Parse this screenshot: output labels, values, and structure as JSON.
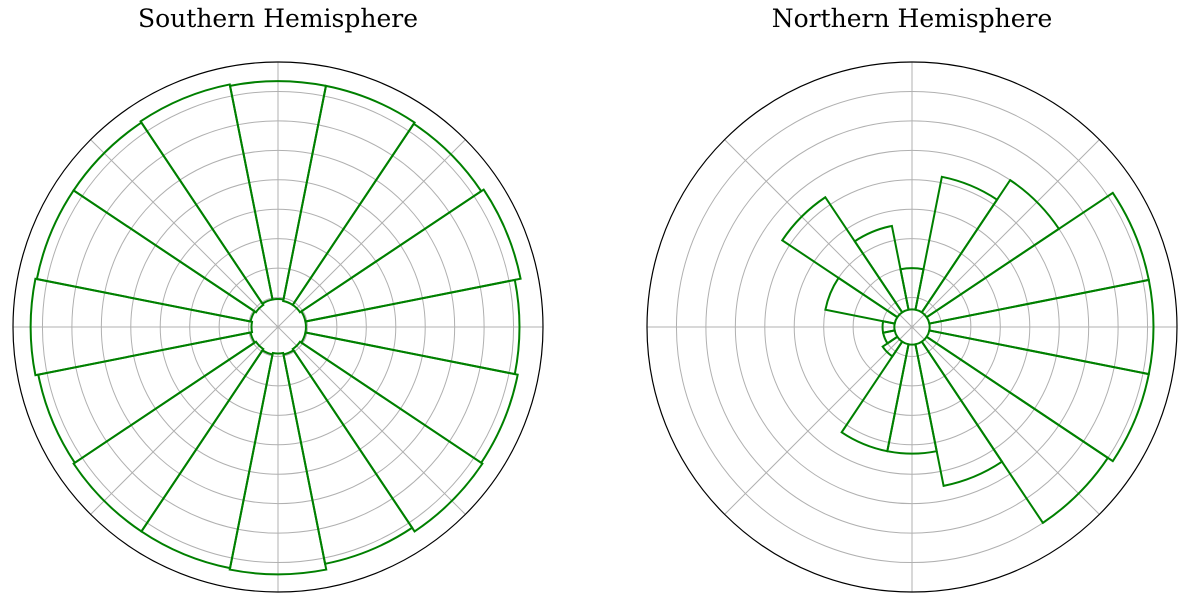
{
  "chart_data": [
    {
      "type": "polar-bar",
      "title": "Southern Hemisphere",
      "grid": true,
      "color": "#008000",
      "sectors": 16,
      "rlim": [
        0,
        9
      ],
      "rticks": [
        1,
        2,
        3,
        4,
        5,
        6,
        7,
        8
      ],
      "bars": [
        {
          "theta_deg": 0,
          "r0": 0.95,
          "r1": 8.35
        },
        {
          "theta_deg": 22.5,
          "r0": 0.9,
          "r1": 8.35
        },
        {
          "theta_deg": 45,
          "r0": 0.9,
          "r1": 8.3
        },
        {
          "theta_deg": 67.5,
          "r0": 0.95,
          "r1": 8.4
        },
        {
          "theta_deg": 90,
          "r0": 0.95,
          "r1": 8.2
        },
        {
          "theta_deg": 112.5,
          "r0": 0.95,
          "r1": 8.3
        },
        {
          "theta_deg": 135,
          "r0": 0.9,
          "r1": 8.35
        },
        {
          "theta_deg": 157.5,
          "r0": 0.95,
          "r1": 8.2
        },
        {
          "theta_deg": 180,
          "r0": 0.9,
          "r1": 8.4
        },
        {
          "theta_deg": 202.5,
          "r0": 0.95,
          "r1": 8.35
        },
        {
          "theta_deg": 225,
          "r0": 0.9,
          "r1": 8.35
        },
        {
          "theta_deg": 247.5,
          "r0": 0.95,
          "r1": 8.3
        },
        {
          "theta_deg": 270,
          "r0": 0.9,
          "r1": 8.4
        },
        {
          "theta_deg": 292.5,
          "r0": 0.95,
          "r1": 8.35
        },
        {
          "theta_deg": 315,
          "r0": 0.9,
          "r1": 8.35
        },
        {
          "theta_deg": 337.5,
          "r0": 0.95,
          "r1": 8.4
        }
      ]
    },
    {
      "type": "polar-bar",
      "title": "Northern Hemisphere",
      "grid": true,
      "color": "#008000",
      "sectors": 16,
      "rlim": [
        0,
        9
      ],
      "rticks": [
        1,
        2,
        3,
        4,
        5,
        6,
        7,
        8
      ],
      "bars": [
        {
          "theta_deg": 0,
          "r0": 0.6,
          "r1": 2.0
        },
        {
          "theta_deg": 22.5,
          "r0": 0.6,
          "r1": 5.2
        },
        {
          "theta_deg": 45,
          "r0": 0.6,
          "r1": 6.0
        },
        {
          "theta_deg": 67.5,
          "r0": 0.6,
          "r1": 8.2
        },
        {
          "theta_deg": 90,
          "r0": 0.6,
          "r1": 8.2
        },
        {
          "theta_deg": 112.5,
          "r0": 0.6,
          "r1": 8.2
        },
        {
          "theta_deg": 135,
          "r0": 0.6,
          "r1": 8.0
        },
        {
          "theta_deg": 157.5,
          "r0": 0.6,
          "r1": 5.5
        },
        {
          "theta_deg": 180,
          "r0": 0.6,
          "r1": 4.3
        },
        {
          "theta_deg": 202.5,
          "r0": 0.6,
          "r1": 4.3
        },
        {
          "theta_deg": 225,
          "r0": 0.6,
          "r1": 1.2
        },
        {
          "theta_deg": 247.5,
          "r0": 0.6,
          "r1": 1.0
        },
        {
          "theta_deg": 270,
          "r0": 0.6,
          "r1": 1.0
        },
        {
          "theta_deg": 292.5,
          "r0": 0.6,
          "r1": 3.0
        },
        {
          "theta_deg": 315,
          "r0": 0.6,
          "r1": 5.3
        },
        {
          "theta_deg": 337.5,
          "r0": 0.6,
          "r1": 3.5
        }
      ]
    }
  ]
}
